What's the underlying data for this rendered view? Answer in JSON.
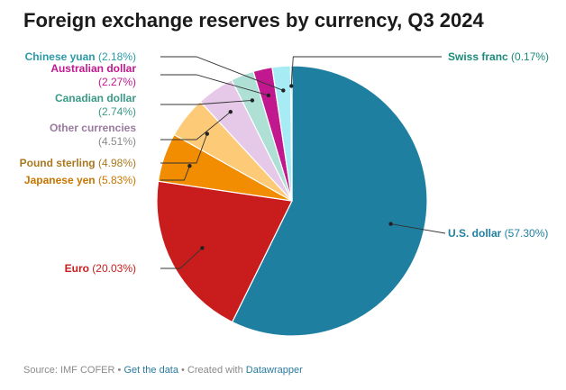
{
  "title": "Foreign exchange reserves by currency, Q3 2024",
  "footer": {
    "source_text": "Source: IMF COFER",
    "sep1": " • ",
    "get_data": "Get the data",
    "sep2": " • Created with ",
    "tool": "Datawrapper"
  },
  "chart_data": {
    "type": "pie",
    "title": "Foreign exchange reserves by currency, Q3 2024",
    "unit": "%",
    "slices": [
      {
        "label": "U.S. dollar",
        "value": 57.3,
        "display": "(57.30%)",
        "color": "#1f7fa1",
        "label_color": "#1f7fa1"
      },
      {
        "label": "Euro",
        "value": 20.03,
        "display": "(20.03%)",
        "color": "#c91d1d",
        "label_color": "#c91d1d"
      },
      {
        "label": "Japanese yen",
        "value": 5.83,
        "display": "(5.83%)",
        "color": "#f28c00",
        "label_color": "#c87500"
      },
      {
        "label": "Pound sterling",
        "value": 4.98,
        "display": "(4.98%)",
        "color": "#fdca78",
        "label_color": "#a8781f"
      },
      {
        "label": "Other currencies",
        "value": 4.51,
        "display": "(4.51%)",
        "color": "#e6c8e8",
        "label_color": "#9a7a9e"
      },
      {
        "label": "Canadian dollar",
        "value": 2.74,
        "display": "(2.74%)",
        "color": "#aee0d5",
        "label_color": "#3a9a86"
      },
      {
        "label": "Australian dollar",
        "value": 2.27,
        "display": "(2.27%)",
        "color": "#c2188f",
        "label_color": "#c2188f"
      },
      {
        "label": "Chinese yuan",
        "value": 2.18,
        "display": "(2.18%)",
        "color": "#a7ecf4",
        "label_color": "#2a9aa8"
      },
      {
        "label": "Swiss franc",
        "value": 0.17,
        "display": "(0.17%)",
        "color": "#1b6a74",
        "label_color": "#1b8a7a"
      }
    ]
  }
}
